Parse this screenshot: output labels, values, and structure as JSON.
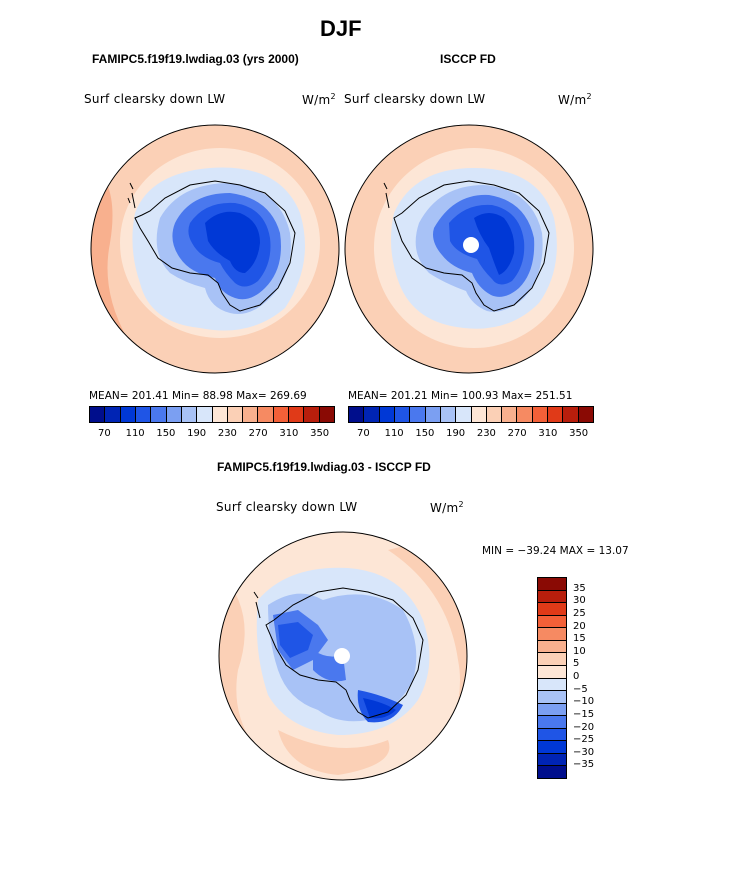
{
  "title": "DJF",
  "top_left": {
    "subtitle": "FAMIPC5.f19f19.lwdiag.03 (yrs 2000)",
    "variable": "Surf clearsky down LW",
    "units": "W/m",
    "units_exp": "2",
    "stats": "MEAN= 201.41   Min=   88.98   Max= 269.69"
  },
  "top_right": {
    "subtitle": "ISCCP FD",
    "variable": "Surf clearsky down LW",
    "units": "W/m",
    "units_exp": "2",
    "stats": "MEAN= 201.21   Min= 100.93   Max= 251.51"
  },
  "top_colorbar": {
    "colors": [
      "#000e8c",
      "#0024b4",
      "#0038d6",
      "#1f55e6",
      "#4a78ee",
      "#7b9ff2",
      "#a8c2f6",
      "#d8e6fa",
      "#fde6d6",
      "#fbd0b6",
      "#f8b08e",
      "#f68a62",
      "#f36038",
      "#e03a18",
      "#b81e0c",
      "#8a0a04"
    ],
    "ticks": [
      "70",
      "110",
      "150",
      "190",
      "230",
      "270",
      "310",
      "350"
    ]
  },
  "diff": {
    "subtitle": "FAMIPC5.f19f19.lwdiag.03 - ISCCP FD",
    "variable": "Surf clearsky down LW",
    "units": "W/m",
    "units_exp": "2",
    "minmax": "MIN = −39.24 MAX =   13.07"
  },
  "diff_colorbar": {
    "colors": [
      "#8a0a04",
      "#b81e0c",
      "#e03a18",
      "#f36038",
      "#f68a62",
      "#f8b08e",
      "#fbd0b6",
      "#fde6d6",
      "#d8e6fa",
      "#a8c2f6",
      "#7b9ff2",
      "#4a78ee",
      "#1f55e6",
      "#0038d6",
      "#0024b4",
      "#000e8c"
    ],
    "ticks": [
      "35",
      "30",
      "25",
      "20",
      "15",
      "10",
      "5",
      "0",
      "−5",
      "−10",
      "−15",
      "−20",
      "−25",
      "−30",
      "−35"
    ]
  },
  "map_colors": {
    "ocean_warm": "#fbd0b6",
    "ocean_cool": "#fde6d6",
    "ice_edge": "#d8e6fa",
    "ice_mid": "#7b9ff2",
    "ice_core": "#1f55e6",
    "ice_deep": "#0038d6",
    "warm_edge": "#f8b08e"
  }
}
